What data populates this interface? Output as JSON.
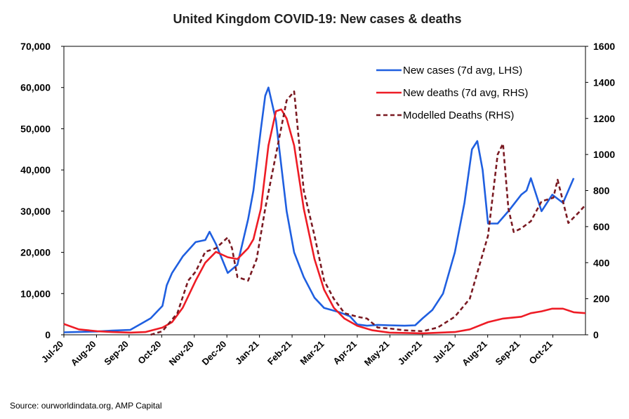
{
  "chart_data": {
    "type": "line",
    "title": "United Kingdom COVID-19: New cases & deaths",
    "x_ticks": [
      "Jul-20",
      "Aug-20",
      "Sep-20",
      "Oct-20",
      "Nov-20",
      "Dec-20",
      "Jan-21",
      "Feb-21",
      "Mar-21",
      "Apr-21",
      "May-21",
      "Jun-21",
      "Jul-21",
      "Aug-21",
      "Sep-21",
      "Oct-21"
    ],
    "y_left_ticks": [
      "0",
      "10,000",
      "20,000",
      "30,000",
      "40,000",
      "50,000",
      "60,000",
      "70,000"
    ],
    "y_right_ticks": [
      "0",
      "200",
      "400",
      "600",
      "800",
      "1000",
      "1200",
      "1400",
      "1600"
    ],
    "ylim_left": [
      0,
      70000
    ],
    "ylim_right": [
      0,
      1600
    ],
    "x_start": "2020-07-01",
    "x_end": "2021-10-31",
    "grid": false,
    "legend_position": "top-right",
    "series": [
      {
        "name": "New cases (7d avg, LHS)",
        "axis": "left",
        "color": "#1f5fe0",
        "style": "solid",
        "x": [
          "2020-07-01",
          "2020-07-15",
          "2020-08-01",
          "2020-08-15",
          "2020-09-01",
          "2020-09-10",
          "2020-09-20",
          "2020-10-01",
          "2020-10-05",
          "2020-10-10",
          "2020-10-15",
          "2020-10-20",
          "2020-11-01",
          "2020-11-10",
          "2020-11-14",
          "2020-11-20",
          "2020-12-01",
          "2020-12-10",
          "2020-12-20",
          "2020-12-25",
          "2021-01-01",
          "2021-01-05",
          "2021-01-08",
          "2021-01-15",
          "2021-01-25",
          "2021-02-01",
          "2021-02-10",
          "2021-02-20",
          "2021-03-01",
          "2021-03-15",
          "2021-03-25",
          "2021-04-01",
          "2021-04-10",
          "2021-04-20",
          "2021-05-01",
          "2021-05-15",
          "2021-05-25",
          "2021-06-01",
          "2021-06-10",
          "2021-06-20",
          "2021-07-01",
          "2021-07-10",
          "2021-07-17",
          "2021-07-22",
          "2021-07-27",
          "2021-08-01",
          "2021-08-10",
          "2021-08-20",
          "2021-09-01",
          "2021-09-06",
          "2021-09-10",
          "2021-09-20",
          "2021-09-30",
          "2021-10-10",
          "2021-10-20"
        ],
        "y": [
          600,
          700,
          800,
          1000,
          1200,
          2500,
          4000,
          7000,
          12000,
          15000,
          17000,
          19000,
          22500,
          23000,
          25000,
          22000,
          15000,
          17000,
          28000,
          35000,
          50000,
          58000,
          60000,
          52000,
          30000,
          20000,
          14000,
          9000,
          6500,
          5500,
          4500,
          2500,
          2200,
          2400,
          2300,
          2200,
          2300,
          4000,
          6000,
          10000,
          20000,
          32000,
          45000,
          47000,
          40000,
          27000,
          27000,
          30000,
          34000,
          35000,
          38000,
          30000,
          34000,
          32000,
          38000
        ]
      },
      {
        "name": "New deaths (7d avg, RHS)",
        "axis": "right",
        "color": "#ee1c25",
        "style": "solid",
        "x": [
          "2020-07-01",
          "2020-07-15",
          "2020-08-01",
          "2020-08-15",
          "2020-09-01",
          "2020-09-15",
          "2020-10-01",
          "2020-10-10",
          "2020-10-20",
          "2020-11-01",
          "2020-11-10",
          "2020-11-20",
          "2020-12-01",
          "2020-12-10",
          "2020-12-20",
          "2020-12-25",
          "2021-01-01",
          "2021-01-08",
          "2021-01-15",
          "2021-01-20",
          "2021-01-25",
          "2021-02-01",
          "2021-02-10",
          "2021-02-20",
          "2021-03-01",
          "2021-03-10",
          "2021-03-20",
          "2021-04-01",
          "2021-04-15",
          "2021-05-01",
          "2021-06-01",
          "2021-07-01",
          "2021-07-15",
          "2021-08-01",
          "2021-08-15",
          "2021-09-01",
          "2021-09-10",
          "2021-09-20",
          "2021-09-30",
          "2021-10-10",
          "2021-10-20",
          "2021-10-31"
        ],
        "y": [
          60,
          30,
          20,
          15,
          12,
          15,
          40,
          70,
          150,
          300,
          400,
          460,
          430,
          420,
          480,
          530,
          700,
          1050,
          1240,
          1250,
          1200,
          1050,
          700,
          420,
          250,
          150,
          90,
          50,
          25,
          12,
          8,
          15,
          30,
          70,
          90,
          100,
          120,
          130,
          145,
          145,
          125,
          120
        ]
      },
      {
        "name": "Modelled Deaths (RHS)",
        "axis": "right",
        "color": "#7a1a22",
        "style": "dashed",
        "x": [
          "2020-09-20",
          "2020-10-01",
          "2020-10-15",
          "2020-10-25",
          "2020-11-01",
          "2020-11-10",
          "2020-11-20",
          "2020-12-01",
          "2020-12-05",
          "2020-12-10",
          "2020-12-20",
          "2020-12-28",
          "2021-01-05",
          "2021-01-15",
          "2021-01-25",
          "2021-02-01",
          "2021-02-10",
          "2021-02-20",
          "2021-03-01",
          "2021-03-10",
          "2021-03-20",
          "2021-04-01",
          "2021-04-10",
          "2021-04-20",
          "2021-05-01",
          "2021-05-15",
          "2021-06-01",
          "2021-06-15",
          "2021-07-01",
          "2021-07-15",
          "2021-08-01",
          "2021-08-10",
          "2021-08-15",
          "2021-08-20",
          "2021-08-25",
          "2021-09-01",
          "2021-09-10",
          "2021-09-20",
          "2021-10-01",
          "2021-10-05",
          "2021-10-15",
          "2021-10-25",
          "2021-10-31"
        ],
        "y": [
          0,
          20,
          120,
          300,
          350,
          460,
          480,
          540,
          480,
          320,
          300,
          420,
          700,
          1000,
          1300,
          1350,
          800,
          550,
          300,
          200,
          120,
          100,
          90,
          40,
          35,
          25,
          20,
          40,
          100,
          200,
          550,
          1000,
          1060,
          700,
          570,
          590,
          630,
          740,
          760,
          860,
          620,
          680,
          720
        ]
      }
    ],
    "source": "Source: ourworldindata.org, AMP Capital"
  }
}
